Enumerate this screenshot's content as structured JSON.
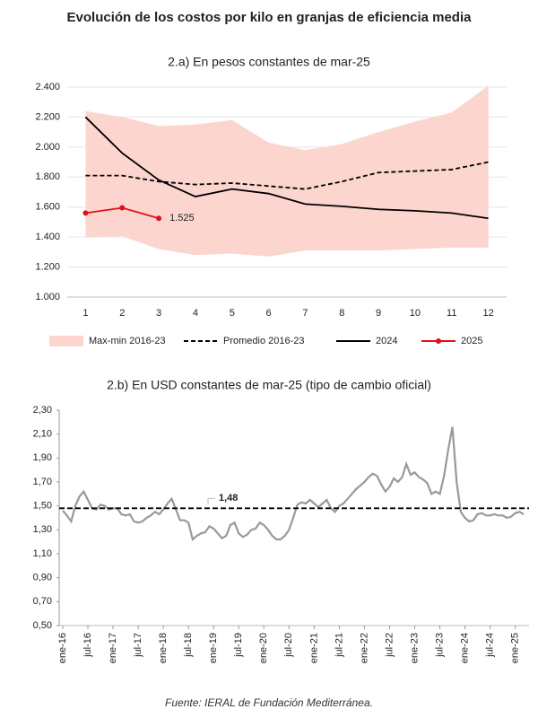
{
  "title": "Evolución de los costos por kilo en granjas de eficiencia media",
  "source": "Fuente: IERAL de Fundación Mediterránea.",
  "chart_data": [
    {
      "type": "line",
      "title": "2.a) En pesos constantes de mar-25",
      "categories": [
        "1",
        "2",
        "3",
        "4",
        "5",
        "6",
        "7",
        "8",
        "9",
        "10",
        "11",
        "12"
      ],
      "ylim": [
        1000,
        2400
      ],
      "yticks": [
        {
          "value": 1000,
          "label": "1.000"
        },
        {
          "value": 1200,
          "label": "1.200"
        },
        {
          "value": 1400,
          "label": "1.400"
        },
        {
          "value": 1600,
          "label": "1.600"
        },
        {
          "value": 1800,
          "label": "1.800"
        },
        {
          "value": 2000,
          "label": "2.000"
        },
        {
          "value": 2200,
          "label": "2.200"
        },
        {
          "value": 2400,
          "label": "2.400"
        }
      ],
      "legend": "bottom",
      "series": [
        {
          "name": "Max-min 2016-23",
          "type": "band",
          "color": "#fcd5cf",
          "values": [
            2240,
            2200,
            2140,
            2150,
            2180,
            2030,
            1980,
            2020,
            2100,
            2170,
            2230,
            2410
          ],
          "lower": [
            1400,
            1405,
            1320,
            1280,
            1290,
            1270,
            1310,
            1310,
            1310,
            1320,
            1330,
            1330
          ]
        },
        {
          "name": "Promedio 2016-23",
          "color": "#000000",
          "dashed": true,
          "values": [
            1810,
            1810,
            1770,
            1750,
            1760,
            1740,
            1720,
            1770,
            1830,
            1840,
            1850,
            1900
          ]
        },
        {
          "name": "2024",
          "color": "#000000",
          "values": [
            2200,
            1960,
            1780,
            1670,
            1720,
            1690,
            1620,
            1605,
            1585,
            1575,
            1560,
            1525
          ]
        },
        {
          "name": "2025",
          "color": "#e0101a",
          "markers": true,
          "values": [
            1560,
            1595,
            1525,
            null,
            null,
            null,
            null,
            null,
            null,
            null,
            null,
            null
          ],
          "value_labels": [
            null,
            null,
            "1.525",
            null,
            null,
            null,
            null,
            null,
            null,
            null,
            null,
            null
          ]
        }
      ]
    },
    {
      "type": "line",
      "title": "2.b) En USD constantes de mar-25 (tipo de cambio oficial)",
      "categories": [
        "ene-16",
        null,
        null,
        null,
        null,
        null,
        "jul-16",
        null,
        null,
        null,
        null,
        null,
        "ene-17",
        null,
        null,
        null,
        null,
        null,
        "jul-17",
        null,
        null,
        null,
        null,
        null,
        "ene-18",
        null,
        null,
        null,
        null,
        null,
        "jul-18",
        null,
        null,
        null,
        null,
        null,
        "ene-19",
        null,
        null,
        null,
        null,
        null,
        "jul-19",
        null,
        null,
        null,
        null,
        null,
        "ene-20",
        null,
        null,
        null,
        null,
        null,
        "jul-20",
        null,
        null,
        null,
        null,
        null,
        "ene-21",
        null,
        null,
        null,
        null,
        null,
        "jul-21",
        null,
        null,
        null,
        null,
        null,
        "ene-22",
        null,
        null,
        null,
        null,
        null,
        "jul-22",
        null,
        null,
        null,
        null,
        null,
        "ene-23",
        null,
        null,
        null,
        null,
        null,
        "jul-23",
        null,
        null,
        null,
        null,
        null,
        "ene-24",
        null,
        null,
        null,
        null,
        null,
        "jul-24",
        null,
        null,
        null,
        null,
        null,
        "ene-25",
        null,
        null
      ],
      "ylim": [
        0.5,
        2.3
      ],
      "yticks": [
        {
          "value": 0.5,
          "label": "0,50"
        },
        {
          "value": 0.7,
          "label": "0,70"
        },
        {
          "value": 0.9,
          "label": "0,90"
        },
        {
          "value": 1.1,
          "label": "1,10"
        },
        {
          "value": 1.3,
          "label": "1,30"
        },
        {
          "value": 1.5,
          "label": "1,50"
        },
        {
          "value": 1.7,
          "label": "1,70"
        },
        {
          "value": 1.9,
          "label": "1,90"
        },
        {
          "value": 2.1,
          "label": "2,10"
        },
        {
          "value": 2.3,
          "label": "2,30"
        }
      ],
      "reference": {
        "value": 1.48,
        "label": "1,48"
      },
      "series": [
        {
          "color": "#999999",
          "values": [
            1.46,
            1.42,
            1.37,
            1.5,
            1.58,
            1.62,
            1.55,
            1.48,
            1.47,
            1.51,
            1.5,
            1.47,
            1.48,
            1.48,
            1.43,
            1.42,
            1.43,
            1.37,
            1.36,
            1.37,
            1.4,
            1.42,
            1.45,
            1.43,
            1.47,
            1.52,
            1.56,
            1.47,
            1.38,
            1.38,
            1.36,
            1.22,
            1.25,
            1.27,
            1.28,
            1.33,
            1.31,
            1.27,
            1.23,
            1.25,
            1.34,
            1.36,
            1.27,
            1.24,
            1.26,
            1.3,
            1.31,
            1.36,
            1.34,
            1.3,
            1.25,
            1.22,
            1.22,
            1.25,
            1.3,
            1.4,
            1.51,
            1.53,
            1.52,
            1.55,
            1.52,
            1.49,
            1.52,
            1.55,
            1.48,
            1.45,
            1.5,
            1.52,
            1.56,
            1.6,
            1.64,
            1.67,
            1.7,
            1.74,
            1.77,
            1.75,
            1.68,
            1.62,
            1.66,
            1.73,
            1.7,
            1.74,
            1.85,
            1.76,
            1.78,
            1.74,
            1.72,
            1.69,
            1.6,
            1.62,
            1.6,
            1.75,
            1.97,
            2.16,
            1.7,
            1.45,
            1.4,
            1.37,
            1.38,
            1.43,
            1.44,
            1.42,
            1.42,
            1.43,
            1.42,
            1.42,
            1.4,
            1.41,
            1.44,
            1.45,
            1.43
          ]
        }
      ]
    }
  ]
}
